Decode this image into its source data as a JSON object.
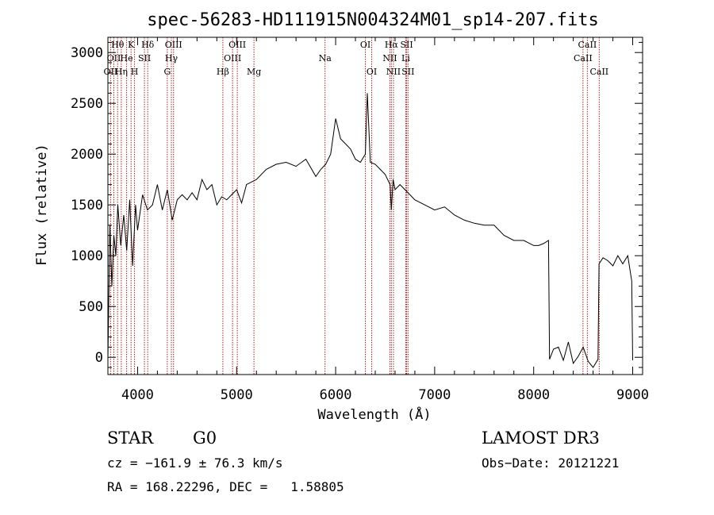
{
  "chart_data": {
    "type": "line",
    "title": "spec-56283-HD111915N004324M01_sp14-207.fits",
    "xlabel": "Wavelength (Å)",
    "ylabel": "Flux (relative)",
    "xlim": [
      3700,
      9100
    ],
    "ylim": [
      -170,
      3150
    ],
    "xticks": [
      4000,
      5000,
      6000,
      7000,
      8000,
      9000
    ],
    "yticks": [
      0,
      500,
      1000,
      1500,
      2000,
      2500,
      3000
    ],
    "grid": false,
    "series": [
      {
        "x": [
          3700,
          3720,
          3740,
          3760,
          3780,
          3800,
          3830,
          3860,
          3890,
          3920,
          3950,
          3980,
          4000,
          4050,
          4100,
          4150,
          4200,
          4250,
          4300,
          4350,
          4400,
          4450,
          4500,
          4550,
          4600,
          4650,
          4700,
          4750,
          4800,
          4850,
          4900,
          4950,
          5000,
          5050,
          5100,
          5200,
          5300,
          5400,
          5500,
          5600,
          5700,
          5800,
          5850,
          5900,
          5950,
          6000,
          6050,
          6100,
          6150,
          6200,
          6250,
          6300,
          6320,
          6350,
          6400,
          6450,
          6500,
          6550,
          6563,
          6580,
          6600,
          6650,
          6700,
          6750,
          6800,
          6900,
          7000,
          7100,
          7200,
          7300,
          7400,
          7500,
          7600,
          7700,
          7800,
          7900,
          8000,
          8050,
          8100,
          8150,
          8160,
          8200,
          8250,
          8300,
          8350,
          8400,
          8450,
          8500,
          8550,
          8600,
          8650,
          8660,
          8700,
          8750,
          8800,
          8850,
          8900,
          8950,
          8990,
          9000
        ],
        "y": [
          -20,
          1300,
          700,
          1200,
          1000,
          1500,
          1100,
          1400,
          1050,
          1550,
          900,
          1500,
          1250,
          1600,
          1450,
          1500,
          1700,
          1450,
          1650,
          1350,
          1550,
          1600,
          1550,
          1620,
          1550,
          1750,
          1650,
          1700,
          1500,
          1580,
          1550,
          1600,
          1650,
          1520,
          1700,
          1750,
          1850,
          1900,
          1920,
          1880,
          1950,
          1780,
          1850,
          1900,
          2000,
          2350,
          2150,
          2100,
          2050,
          1950,
          1920,
          2000,
          2600,
          1920,
          1900,
          1850,
          1800,
          1700,
          1450,
          1750,
          1650,
          1700,
          1650,
          1600,
          1550,
          1500,
          1450,
          1480,
          1400,
          1350,
          1320,
          1300,
          1300,
          1200,
          1150,
          1150,
          1100,
          1100,
          1120,
          1150,
          -20,
          80,
          100,
          -30,
          150,
          -60,
          10,
          100,
          -40,
          -100,
          -20,
          920,
          980,
          950,
          900,
          1000,
          920,
          1000,
          750,
          -30
        ]
      }
    ],
    "lines": [
      {
        "label": "OII",
        "x": 3727,
        "row": 3
      },
      {
        "label": "Hθ",
        "x": 3798,
        "row": 1
      },
      {
        "label": "OII",
        "x": 3760,
        "row": 2
      },
      {
        "label": "Hη",
        "x": 3835,
        "row": 3
      },
      {
        "label": "He",
        "x": 3889,
        "row": 2
      },
      {
        "label": "K",
        "x": 3934,
        "row": 1
      },
      {
        "label": "H",
        "x": 3969,
        "row": 3
      },
      {
        "label": "SII",
        "x": 4069,
        "row": 2
      },
      {
        "label": "Hδ",
        "x": 4102,
        "row": 1
      },
      {
        "label": "G",
        "x": 4300,
        "row": 3
      },
      {
        "label": "OIII",
        "x": 4363,
        "row": 1
      },
      {
        "label": "Hγ",
        "x": 4341,
        "row": 2
      },
      {
        "label": "Hβ",
        "x": 4861,
        "row": 3
      },
      {
        "label": "OIII",
        "x": 5007,
        "row": 1
      },
      {
        "label": "OIII",
        "x": 4959,
        "row": 2
      },
      {
        "label": "Mg",
        "x": 5175,
        "row": 3
      },
      {
        "label": "Na",
        "x": 5893,
        "row": 2
      },
      {
        "label": "OI",
        "x": 6300,
        "row": 1
      },
      {
        "label": "OI",
        "x": 6364,
        "row": 3
      },
      {
        "label": "Hα",
        "x": 6563,
        "row": 1
      },
      {
        "label": "NII",
        "x": 6548,
        "row": 2
      },
      {
        "label": "NII",
        "x": 6584,
        "row": 3
      },
      {
        "label": "SII",
        "x": 6717,
        "row": 1
      },
      {
        "label": "Li",
        "x": 6708,
        "row": 2
      },
      {
        "label": "SII",
        "x": 6731,
        "row": 3
      },
      {
        "label": "CaII",
        "x": 8542,
        "row": 1
      },
      {
        "label": "CaII",
        "x": 8498,
        "row": 2
      },
      {
        "label": "CaII",
        "x": 8662,
        "row": 3
      }
    ]
  },
  "info": {
    "object_type": "STAR",
    "subclass": "G0",
    "survey": "LAMOST DR3",
    "cz": "cz = −161.9 ± 76.3 km/s",
    "obs_date": "Obs−Date: 20121221",
    "coords": "RA = 168.22296, DEC =   1.58805"
  },
  "colors": {
    "line_marker": "#b22222",
    "spectrum": "#000000"
  }
}
